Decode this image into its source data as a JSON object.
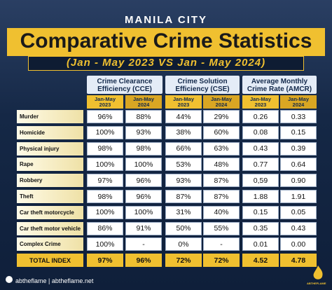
{
  "header": {
    "city": "MANILA CITY",
    "title": "Comparative Crime Statistics",
    "subtitle": "(Jan - May 2023 VS Jan - May 2024)"
  },
  "table": {
    "groups": [
      [
        "Crime Clearance",
        "Efficiency (CCE)"
      ],
      [
        "Crime Solution",
        "Efficiency (CSE)"
      ],
      [
        "Average Monthly",
        "Crime Rate (AMCR)"
      ]
    ],
    "periods": [
      [
        "Jan-May",
        "2023"
      ],
      [
        "Jan-May",
        "2024"
      ]
    ],
    "rows": [
      [
        "Murder",
        "96%",
        "88%",
        "44%",
        "29%",
        "0.26",
        "0.33"
      ],
      [
        "Homicide",
        "100%",
        "93%",
        "38%",
        "60%",
        "0.08",
        "0.15"
      ],
      [
        "Physical injury",
        "98%",
        "98%",
        "66%",
        "63%",
        "0.43",
        "0.39"
      ],
      [
        "Rape",
        "100%",
        "100%",
        "53%",
        "48%",
        "0.77",
        "0.64"
      ],
      [
        "Robbery",
        "97%",
        "96%",
        "93%",
        "87%",
        "0,59",
        "0.90"
      ],
      [
        "Theft",
        "98%",
        "96%",
        "87%",
        "87%",
        "1.88",
        "1.91"
      ],
      [
        "Car theft motorcycle",
        "100%",
        "100%",
        "31%",
        "40%",
        "0.15",
        "0.05"
      ],
      [
        "Car theft motor vehicle",
        "86%",
        "91%",
        "50%",
        "55%",
        "0.35",
        "0.43"
      ],
      [
        "Complex Crime",
        "100%",
        "-",
        "0%",
        "-",
        "0.01",
        "0.00"
      ]
    ],
    "total": [
      "TOTAL INDEX",
      "97%",
      "96%",
      "72%",
      "72%",
      "4.52",
      "4.78"
    ]
  },
  "footer": {
    "handle": "abtheflame | abtheflame.net",
    "logo": "ABTHEFLAME"
  }
}
